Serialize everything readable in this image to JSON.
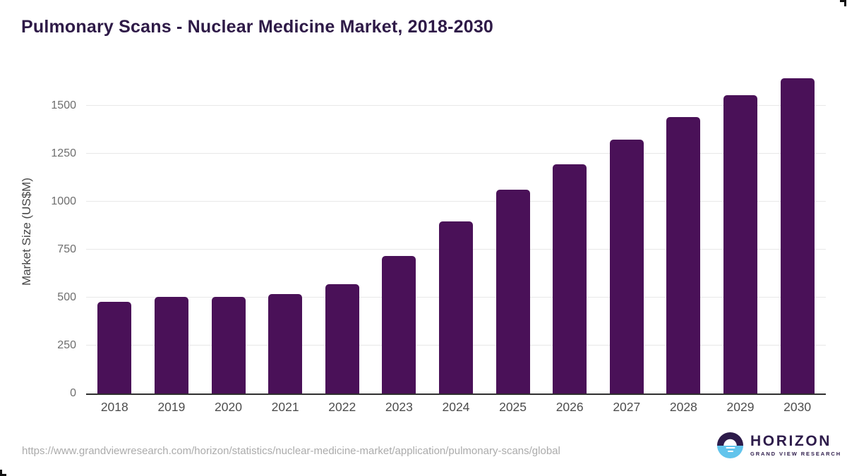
{
  "header": {
    "title": "Pulmonary Scans - Nuclear Medicine Market, 2018-2030"
  },
  "chart_data": {
    "type": "bar",
    "title": "Pulmonary Scans - Nuclear Medicine Market, 2018-2030",
    "xlabel": "",
    "ylabel": "Market Size (US$M)",
    "categories": [
      "2018",
      "2019",
      "2020",
      "2021",
      "2022",
      "2023",
      "2024",
      "2025",
      "2026",
      "2027",
      "2028",
      "2029",
      "2030"
    ],
    "values": [
      478,
      503,
      504,
      517,
      570,
      716,
      897,
      1062,
      1195,
      1324,
      1444,
      1558,
      1645
    ],
    "yticks": [
      0,
      250,
      500,
      750,
      1000,
      1250,
      1500
    ],
    "ylim": [
      0,
      1685
    ],
    "grid": "horizontal",
    "legend": "none",
    "bar_color": "#4a1158"
  },
  "footer": {
    "source_url": "https://www.grandviewresearch.com/horizon/statistics/nuclear-medicine-market/application/pulmonary-scans/global",
    "logo": {
      "name": "HORIZON",
      "subtitle": "GRAND VIEW RESEARCH",
      "icon": "sunrise-circle-icon",
      "purple": "#2d1b4a",
      "blue": "#62c4ec"
    }
  },
  "colors": {
    "title": "#2e1a47",
    "bar": "#4a1158",
    "gridline": "#e8e8e8",
    "axis_line": "#2f2f2f",
    "tick_text": "#6e6e6e",
    "year_text": "#4d4d4d",
    "url_text": "#ababab"
  }
}
